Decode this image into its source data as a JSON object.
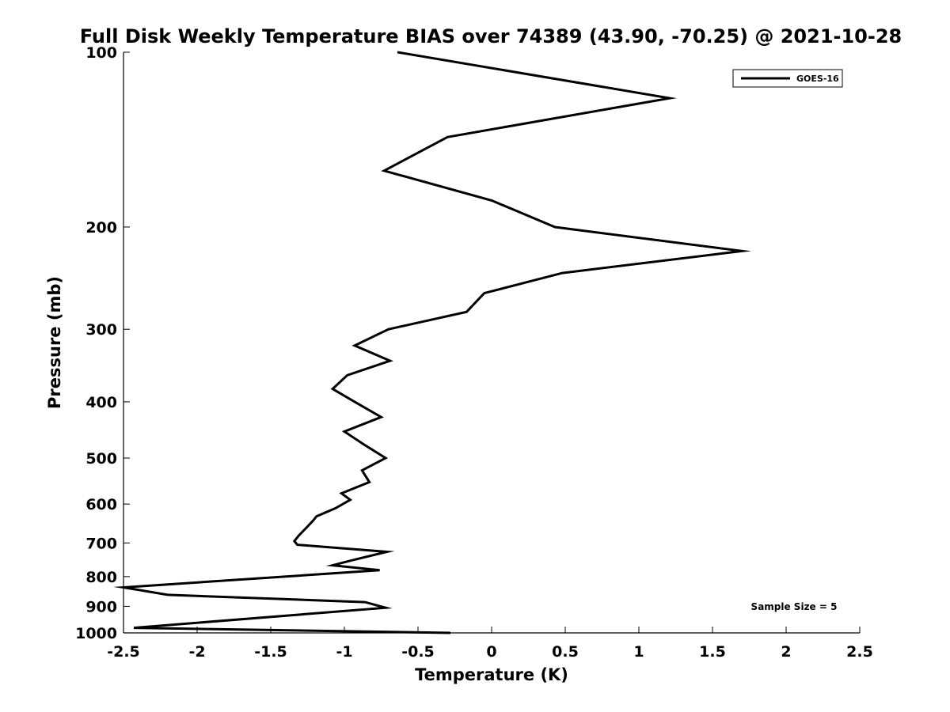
{
  "chart_data": {
    "type": "line",
    "title": "Full Disk Weekly Temperature BIAS over 74389 (43.90, -70.25) @ 2021-10-28",
    "xlabel": "Temperature (K)",
    "ylabel": "Pressure (mb)",
    "xlim": [
      -2.5,
      2.5
    ],
    "ylim": [
      100,
      1000
    ],
    "y_scale": "log",
    "y_reversed": true,
    "grid": false,
    "legend_position": "top-right",
    "xticks": [
      -2.5,
      -2,
      -1.5,
      -1,
      -0.5,
      0,
      0.5,
      1,
      1.5,
      2,
      2.5
    ],
    "xtick_labels": [
      "-2.5",
      "-2",
      "-1.5",
      "-1",
      "-0.5",
      "0",
      "0.5",
      "1",
      "1.5",
      "2",
      "2.5"
    ],
    "yticks": [
      100,
      200,
      300,
      400,
      500,
      600,
      700,
      800,
      900,
      1000
    ],
    "ytick_labels": [
      "100",
      "200",
      "300",
      "400",
      "500",
      "600",
      "700",
      "800",
      "900",
      "1000"
    ],
    "annotation": "Sample Size = 5",
    "series": [
      {
        "name": "GOES-16",
        "color": "#000000",
        "points": [
          {
            "x": -0.64,
            "y": 100
          },
          {
            "x": 1.21,
            "y": 120
          },
          {
            "x": -0.3,
            "y": 140
          },
          {
            "x": -0.73,
            "y": 160
          },
          {
            "x": 0,
            "y": 180
          },
          {
            "x": 0.43,
            "y": 200
          },
          {
            "x": 1.7,
            "y": 220
          },
          {
            "x": 0.48,
            "y": 240
          },
          {
            "x": -0.05,
            "y": 260
          },
          {
            "x": -0.17,
            "y": 280
          },
          {
            "x": -0.7,
            "y": 300
          },
          {
            "x": -0.93,
            "y": 320
          },
          {
            "x": -0.69,
            "y": 340
          },
          {
            "x": -0.98,
            "y": 360
          },
          {
            "x": -1.08,
            "y": 380
          },
          {
            "x": -0.93,
            "y": 400
          },
          {
            "x": -0.75,
            "y": 425
          },
          {
            "x": -1,
            "y": 450
          },
          {
            "x": -0.86,
            "y": 475
          },
          {
            "x": -0.72,
            "y": 500
          },
          {
            "x": -0.88,
            "y": 525
          },
          {
            "x": -0.83,
            "y": 550
          },
          {
            "x": -1.02,
            "y": 575
          },
          {
            "x": -0.96,
            "y": 590
          },
          {
            "x": -1.06,
            "y": 610
          },
          {
            "x": -1.19,
            "y": 630
          },
          {
            "x": -1.21,
            "y": 640
          },
          {
            "x": -1.26,
            "y": 660
          },
          {
            "x": -1.31,
            "y": 680
          },
          {
            "x": -1.34,
            "y": 695
          },
          {
            "x": -1.32,
            "y": 705
          },
          {
            "x": -0.71,
            "y": 725
          },
          {
            "x": -0.95,
            "y": 750
          },
          {
            "x": -1.08,
            "y": 765
          },
          {
            "x": -0.76,
            "y": 780
          },
          {
            "x": -2.5,
            "y": 835
          },
          {
            "x": -2.2,
            "y": 860
          },
          {
            "x": -0.86,
            "y": 885
          },
          {
            "x": -0.72,
            "y": 905
          },
          {
            "x": -2.43,
            "y": 980
          },
          {
            "x": -0.28,
            "y": 1000
          }
        ]
      }
    ]
  }
}
